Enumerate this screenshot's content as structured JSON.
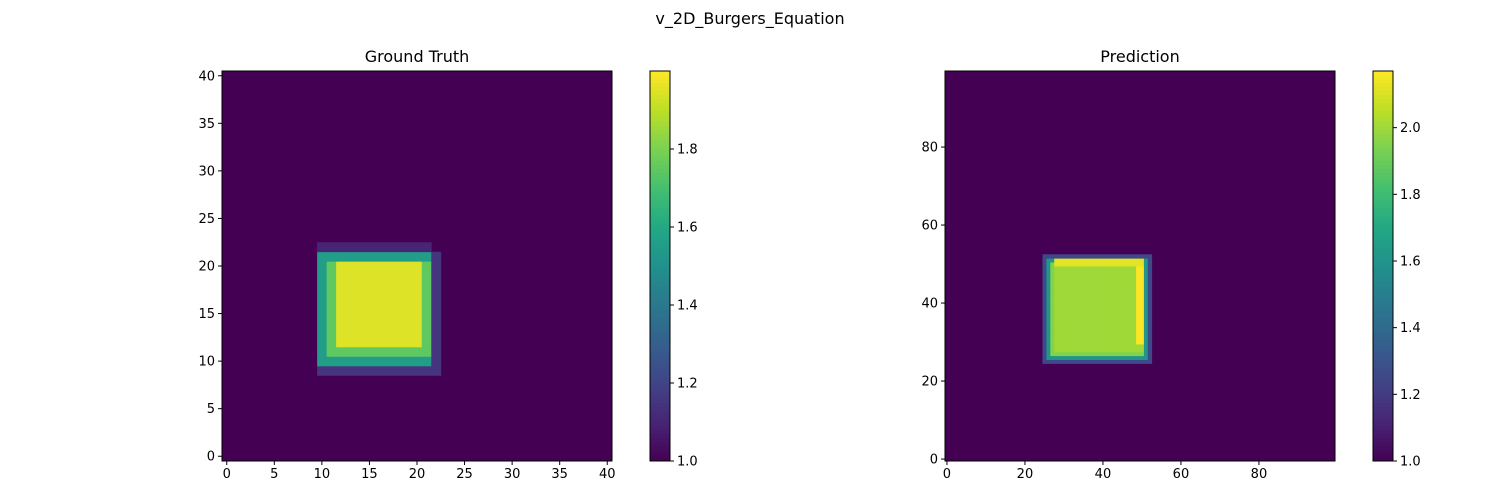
{
  "figure_title": "v_2D_Burgers_Equation",
  "chart_data": [
    {
      "type": "heatmap",
      "title": "Ground Truth",
      "xlabel": "",
      "ylabel": "",
      "grid": false,
      "colormap": "viridis",
      "nx": 41,
      "ny": 41,
      "xlim": [
        -0.5,
        40.5
      ],
      "ylim": [
        -0.5,
        40.5
      ],
      "xticks": [
        0,
        5,
        10,
        15,
        20,
        25,
        30,
        35,
        40
      ],
      "yticks": [
        0,
        5,
        10,
        15,
        20,
        25,
        30,
        35,
        40
      ],
      "background_value": 1.0,
      "value_range": [
        1.0,
        2.0
      ],
      "colorbar_ticks": [
        1.0,
        1.2,
        1.4,
        1.6,
        1.8
      ],
      "colorbar_tick_labels": [
        "1.0",
        "1.2",
        "1.4",
        "1.6",
        "1.8"
      ],
      "regions": [
        {
          "x": [
            10,
            21
          ],
          "y": [
            9,
            22
          ],
          "value": 1.1
        },
        {
          "x": [
            10,
            22
          ],
          "y": [
            9,
            21
          ],
          "value": 1.15
        },
        {
          "x": [
            10,
            21
          ],
          "y": [
            10,
            21
          ],
          "value": 1.55
        },
        {
          "x": [
            11,
            21
          ],
          "y": [
            11,
            20
          ],
          "value": 1.75
        },
        {
          "x": [
            12,
            20
          ],
          "y": [
            12,
            20
          ],
          "value": 1.95
        }
      ]
    },
    {
      "type": "heatmap",
      "title": "Prediction",
      "xlabel": "",
      "ylabel": "",
      "grid": false,
      "colormap": "viridis",
      "nx": 100,
      "ny": 100,
      "xlim": [
        -0.5,
        99.5
      ],
      "ylim": [
        -0.5,
        99.5
      ],
      "xticks": [
        0,
        20,
        40,
        60,
        80
      ],
      "yticks": [
        0,
        20,
        40,
        60,
        80
      ],
      "background_value": 1.0,
      "value_range": [
        1.0,
        2.17
      ],
      "colorbar_ticks": [
        1.0,
        1.2,
        1.4,
        1.6,
        1.8,
        2.0
      ],
      "colorbar_tick_labels": [
        "1.0",
        "1.2",
        "1.4",
        "1.6",
        "1.8",
        "2.0"
      ],
      "regions": [
        {
          "x": [
            25,
            52
          ],
          "y": [
            25,
            52
          ],
          "value": 1.25
        },
        {
          "x": [
            26,
            51
          ],
          "y": [
            26,
            51
          ],
          "value": 1.6
        },
        {
          "x": [
            27,
            50
          ],
          "y": [
            27,
            50
          ],
          "value": 1.95
        },
        {
          "x": [
            28,
            50
          ],
          "y": [
            28,
            50
          ],
          "value": 2.0
        },
        {
          "x": [
            49,
            50
          ],
          "y": [
            30,
            50
          ],
          "value": 2.17
        },
        {
          "x": [
            28,
            50
          ],
          "y": [
            50,
            51
          ],
          "value": 2.12
        }
      ]
    }
  ]
}
